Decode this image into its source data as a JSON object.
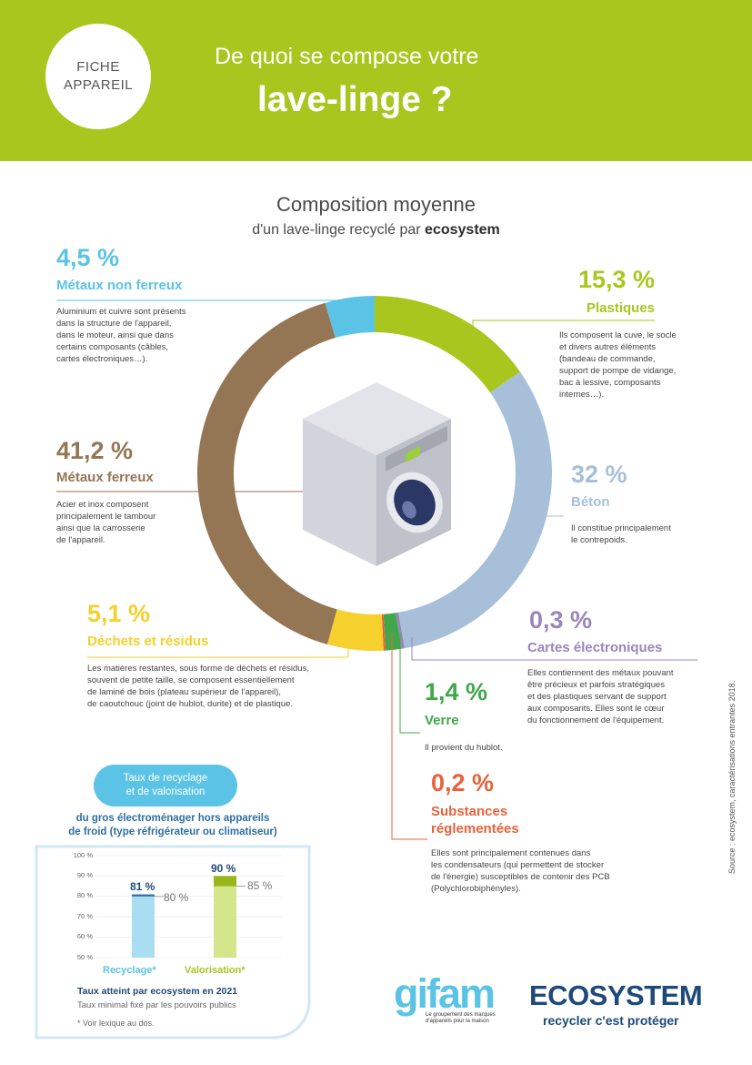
{
  "header": {
    "badge_line1": "FICHE",
    "badge_line2": "APPAREIL",
    "title_line1": "De quoi se compose votre",
    "title_line2": "lave-linge ?"
  },
  "chart_title": "Composition moyenne",
  "chart_subtitle_prefix": "d'un lave-linge recyclé par ",
  "chart_subtitle_brand": "ecosystem",
  "colors": {
    "header_green": "#a9c61f",
    "metaux_non_ferreux": "#5bc4e6",
    "plastiques": "#a9c61f",
    "beton": "#a8bfd9",
    "cartes": "#9a86bd",
    "verre": "#40a84a",
    "substances": "#e8623a",
    "dechets": "#f6d02c",
    "metaux_ferreux": "#957654"
  },
  "chart_data": [
    {
      "type": "pie",
      "title": "Composition moyenne",
      "categories": [
        "Plastiques",
        "Béton",
        "Cartes électroniques",
        "Verre",
        "Substances réglementées",
        "Déchets et résidus",
        "Métaux ferreux",
        "Métaux non ferreux"
      ],
      "values": [
        15.3,
        32,
        0.3,
        1.4,
        0.2,
        5.1,
        41.2,
        4.5
      ],
      "unit": "%",
      "donut": true
    },
    {
      "type": "bar",
      "title": "Taux de recyclage et de valorisation",
      "categories": [
        "Recyclage*",
        "Valorisation*"
      ],
      "series": [
        {
          "name": "Taux atteint par ecosystem en 2021",
          "values": [
            81,
            90
          ]
        },
        {
          "name": "Taux minimal fixé par les pouvoirs publics",
          "values": [
            80,
            85
          ]
        }
      ],
      "ylim": [
        50,
        100
      ],
      "yticks": [
        "100 %",
        "90 %",
        "80 %",
        "70 %",
        "60 %",
        "50 %"
      ]
    }
  ],
  "segments": [
    {
      "key": "mnf",
      "pct": "4,5 %",
      "label": "Métaux non ferreux",
      "desc": [
        "Aluminium et cuivre sont présents",
        "dans la structure de l'appareil,",
        "dans le moteur, ainsi que dans",
        "certains composants (câbles,",
        "cartes électroniques…)."
      ]
    },
    {
      "key": "plast",
      "pct": "15,3 %",
      "label": "Plastiques",
      "desc": [
        "Ils composent la cuve, le socle",
        "et divers autres éléments",
        "(bandeau de commande,",
        "support de pompe de vidange,",
        "bac à lessive, composants",
        "internes…)."
      ]
    },
    {
      "key": "mf",
      "pct": "41,2 %",
      "label": "Métaux ferreux",
      "desc": [
        "Acier et inox composent",
        "principalement le tambour",
        "ainsi que la carrosserie",
        "de l'appareil."
      ]
    },
    {
      "key": "beton",
      "pct": "32 %",
      "label": "Béton",
      "desc": [
        "Il constitue principalement",
        "le contrepoids."
      ]
    },
    {
      "key": "dech",
      "pct": "5,1 %",
      "label": "Déchets et résidus",
      "desc": [
        "Les matières restantes, sous forme de déchets et résidus,",
        "souvent de petite taille, se composent essentiellement",
        "de laminé de bois (plateau supérieur de l'appareil),",
        "de caoutchouc (joint de hublot, durite) et de plastique."
      ]
    },
    {
      "key": "cartes",
      "pct": "0,3 %",
      "label": "Cartes électroniques",
      "desc": [
        "Elles contiennent des métaux pouvant",
        "être précieux et parfois stratégiques",
        "et des plastiques servant de support",
        "aux composants. Elles sont le cœur",
        "du fonctionnement de l'équipement."
      ]
    },
    {
      "key": "verre",
      "pct": "1,4 %",
      "label": "Verre",
      "desc": [
        "Il provient du hublot."
      ]
    },
    {
      "key": "subst",
      "pct": "0,2 %",
      "label_line1": "Substances",
      "label_line2": "réglementées",
      "desc": [
        "Elles sont principalement contenues dans",
        "les condensateurs (qui permettent de stocker",
        "de l'énergie) susceptibles de contenir des PCB",
        "(Polychlorobiphényles)."
      ]
    }
  ],
  "rates": {
    "pill_line1": "Taux de recyclage",
    "pill_line2": "et de valorisation",
    "title_line1": "du gros électroménager hors appareils",
    "title_line2": "de froid (type réfrigérateur ou climatiseur)",
    "recyclage_actual": "81 %",
    "recyclage_min": "80 %",
    "valorisation_actual": "90 %",
    "valorisation_min": "85 %",
    "legend_actual": "Taux atteint par ecosystem en 2021",
    "legend_min": "Taux minimal fixé par les pouvoirs publics",
    "footnote": "* Voir lexique au dos."
  },
  "source": "Source : ecosystem, caractérisations entrantes 2018.",
  "logos": {
    "gifam": "gifam",
    "gifam_sub": "Le groupement des marques d'appareils pour la maison",
    "ecosystem": "ECOSYSTEM",
    "ecosystem_tagline": "recycler c'est protéger"
  },
  "icons": [
    "washing-machine-icon"
  ]
}
